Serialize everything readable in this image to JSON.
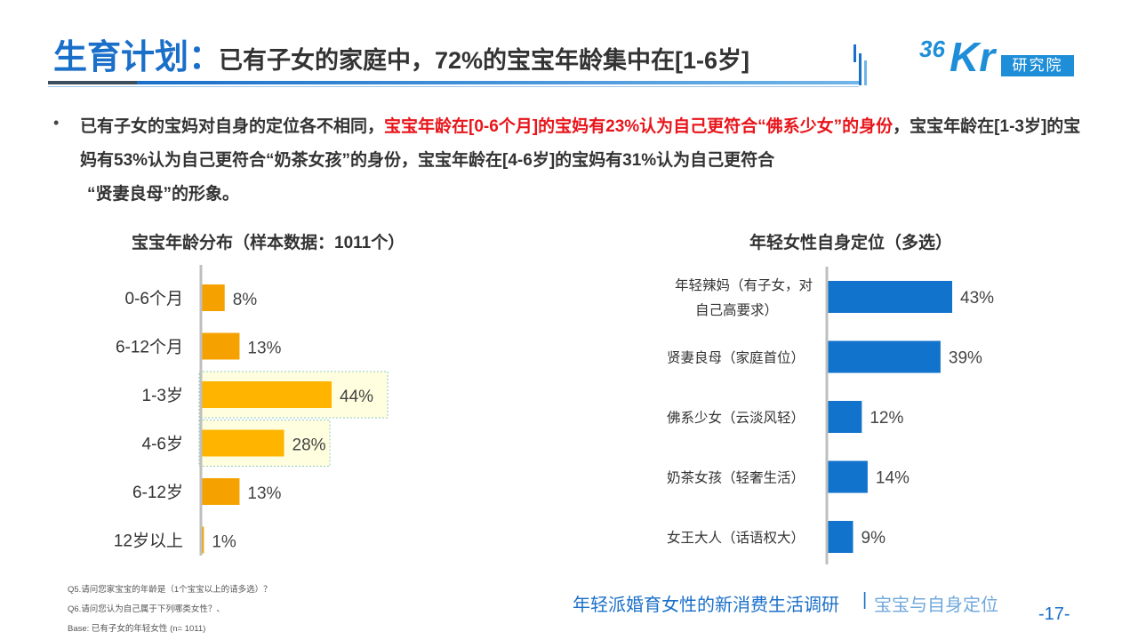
{
  "header": {
    "title_main": "生育计划：",
    "title_sub": "已有子女的家庭中，72%的宝宝年龄集中在[1-6岁]"
  },
  "logo": {
    "num": "36",
    "kr": "Kr",
    "box": "研究院"
  },
  "bullet": {
    "dot": "•",
    "part1": "已有子女的宝妈对自身的定位各不相同，",
    "part2_red": "宝宝年龄在[0-6个月]的宝妈有23%认为自己更符合“佛系少女”的身份",
    "part3": "，宝宝年龄在[1-3岁]的宝妈有53%认为自己更符合“奶茶女孩”的身份，宝宝年龄在[4-6岁]的宝妈有31%认为自己更符合",
    "part4": "“贤妻良母”的形象。"
  },
  "chart_data": [
    {
      "type": "bar",
      "orientation": "horizontal",
      "title": "宝宝年龄分布（样本数据：1011个）",
      "categories": [
        "0-6个月",
        "6-12个月",
        "1-3岁",
        "4-6岁",
        "6-12岁",
        "12岁以上"
      ],
      "values": [
        8,
        13,
        44,
        28,
        13,
        1
      ],
      "value_labels": [
        "8%",
        "13%",
        "44%",
        "28%",
        "13%",
        "1%"
      ],
      "highlighted": [
        "1-3岁",
        "4-6岁"
      ],
      "unit": "%",
      "color": "#f5a200",
      "highlight_color": "#ffb400",
      "xlim": [
        0,
        44
      ]
    },
    {
      "type": "bar",
      "orientation": "horizontal",
      "title": "年轻女性自身定位（多选）",
      "categories": [
        [
          "年轻辣妈（有子女，对",
          "自己高要求）"
        ],
        [
          "贤妻良母（家庭首位）"
        ],
        [
          "佛系少女（云淡风轻）"
        ],
        [
          "奶茶女孩（轻奢生活）"
        ],
        [
          "女王大人（话语权大）"
        ]
      ],
      "values": [
        43,
        39,
        12,
        14,
        9
      ],
      "value_labels": [
        "43%",
        "39%",
        "12%",
        "14%",
        "9%"
      ],
      "unit": "%",
      "color": "#1273cc",
      "xlim": [
        0,
        43
      ]
    }
  ],
  "notes": [
    "Q5.请问您家宝宝的年龄是（1个宝宝以上的请多选）？",
    "Q6.请问您认为自己属于下列哪类女性？、",
    "Base: 已有子女的年轻女性 (n= 1011)"
  ],
  "footer": {
    "title": "年轻派婚育女性的新消费生活调研",
    "sep": "|",
    "sub": "宝宝与自身定位",
    "page": "-17-"
  }
}
